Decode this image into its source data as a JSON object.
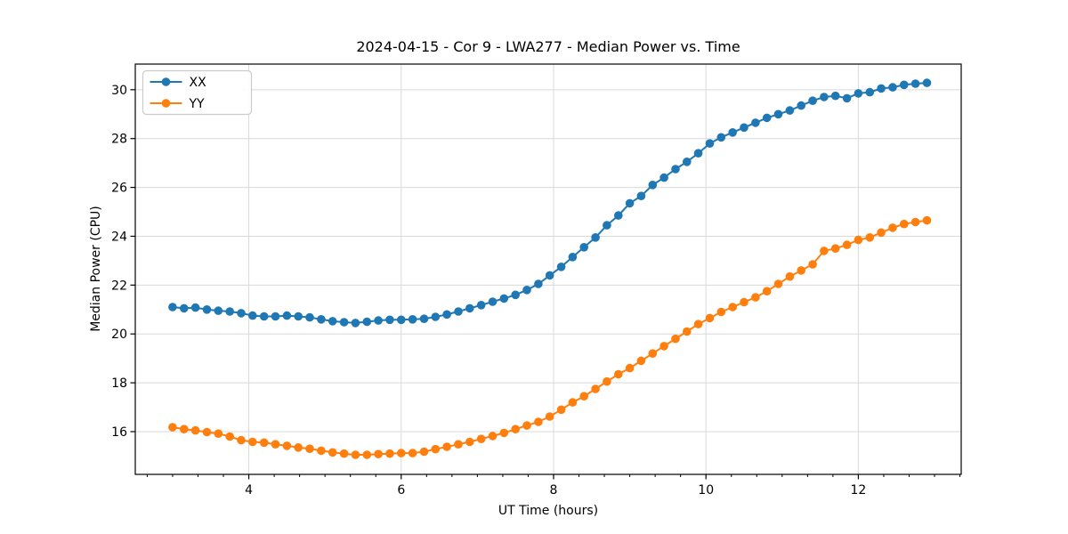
{
  "window": {
    "background": "#ffffff"
  },
  "chart_data": {
    "type": "line",
    "title": "2024-04-15 - Cor 9 - LWA277 - Median Power vs. Time",
    "xlabel": "UT Time (hours)",
    "ylabel": "Median Power (CPU)",
    "xlim": [
      2.51,
      13.35
    ],
    "ylim": [
      14.25,
      31.05
    ],
    "x_ticks": [
      4,
      6,
      8,
      10,
      12
    ],
    "y_ticks": [
      16,
      18,
      20,
      22,
      24,
      26,
      28,
      30
    ],
    "x_minor_step": 0.33333,
    "grid": true,
    "grid_color": "#d9d9d9",
    "spine_color": "#000000",
    "legend": {
      "position": "upper left"
    },
    "marker": "circle",
    "x": [
      3.0,
      3.15,
      3.3,
      3.45,
      3.6,
      3.75,
      3.9,
      4.05,
      4.2,
      4.35,
      4.5,
      4.65,
      4.8,
      4.95,
      5.1,
      5.25,
      5.4,
      5.55,
      5.7,
      5.85,
      6.0,
      6.15,
      6.3,
      6.45,
      6.6,
      6.75,
      6.9,
      7.05,
      7.2,
      7.35,
      7.5,
      7.65,
      7.8,
      7.95,
      8.1,
      8.25,
      8.4,
      8.55,
      8.7,
      8.85,
      9.0,
      9.15,
      9.3,
      9.45,
      9.6,
      9.75,
      9.9,
      10.05,
      10.2,
      10.35,
      10.5,
      10.65,
      10.8,
      10.95,
      11.1,
      11.25,
      11.4,
      11.55,
      11.7,
      11.85,
      12.0,
      12.15,
      12.3,
      12.45,
      12.6,
      12.75,
      12.9
    ],
    "series": [
      {
        "name": "XX",
        "color": "#1f77b4",
        "values": [
          21.1,
          21.05,
          21.08,
          21.0,
          20.95,
          20.92,
          20.85,
          20.75,
          20.72,
          20.72,
          20.75,
          20.72,
          20.68,
          20.6,
          20.52,
          20.48,
          20.45,
          20.5,
          20.55,
          20.58,
          20.58,
          20.6,
          20.62,
          20.7,
          20.8,
          20.92,
          21.05,
          21.18,
          21.32,
          21.45,
          21.6,
          21.8,
          22.05,
          22.4,
          22.75,
          23.15,
          23.55,
          23.95,
          24.45,
          24.85,
          25.35,
          25.65,
          26.1,
          26.4,
          26.75,
          27.05,
          27.4,
          27.8,
          28.05,
          28.25,
          28.45,
          28.65,
          28.85,
          29.0,
          29.15,
          29.35,
          29.55,
          29.7,
          29.75,
          29.65,
          29.85,
          29.9,
          30.05,
          30.1,
          30.2,
          30.25,
          30.28
        ]
      },
      {
        "name": "YY",
        "color": "#ff7f0e",
        "values": [
          16.18,
          16.1,
          16.05,
          15.98,
          15.92,
          15.8,
          15.65,
          15.58,
          15.55,
          15.48,
          15.42,
          15.35,
          15.3,
          15.22,
          15.15,
          15.1,
          15.05,
          15.05,
          15.08,
          15.1,
          15.12,
          15.12,
          15.18,
          15.28,
          15.38,
          15.48,
          15.58,
          15.7,
          15.82,
          15.95,
          16.1,
          16.25,
          16.4,
          16.62,
          16.9,
          17.2,
          17.45,
          17.75,
          18.05,
          18.35,
          18.6,
          18.9,
          19.2,
          19.5,
          19.8,
          20.1,
          20.4,
          20.65,
          20.9,
          21.1,
          21.3,
          21.5,
          21.75,
          22.05,
          22.35,
          22.6,
          22.85,
          23.4,
          23.5,
          23.65,
          23.85,
          23.95,
          24.15,
          24.35,
          24.5,
          24.58,
          24.65
        ]
      }
    ]
  }
}
